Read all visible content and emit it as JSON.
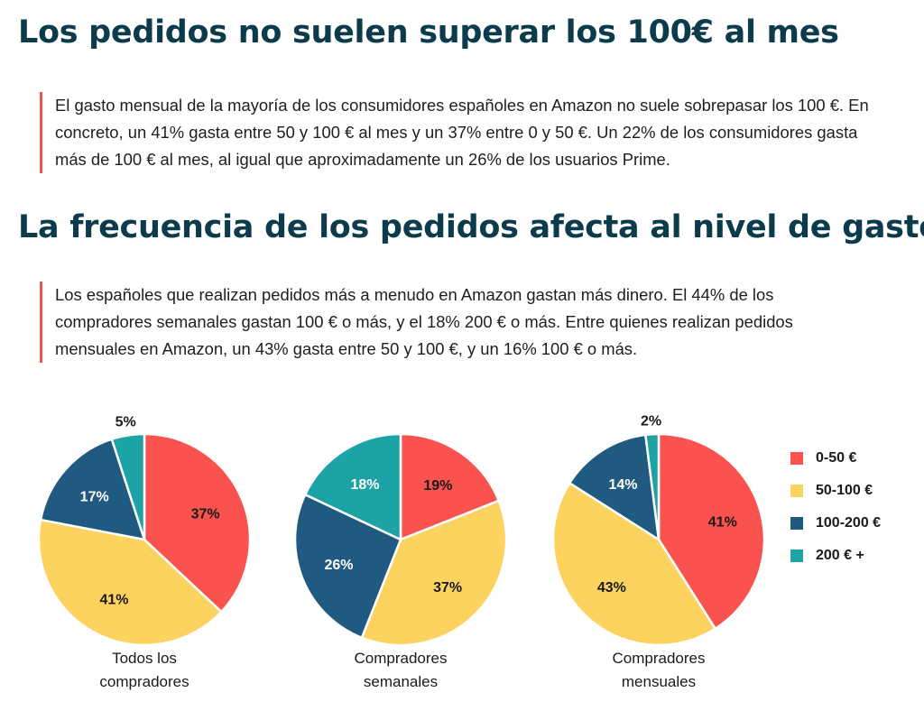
{
  "header1": "Los pedidos no suelen superar los 100€ al mes",
  "paragraph1": "El gasto mensual de la mayoría de los consumidores españoles en Amazon no suele sobrepasar los 100 €. En concreto, un 41% gasta entre 50 y 100 € al mes y un 37% entre 0 y 50 €. Un 22% de los consumidores gasta más de 100 € al mes, al igual que aproximadamente un 26% de los usuarios Prime.",
  "header2": "La frecuencia de los pedidos afecta al nivel de gasto",
  "paragraph2": "Los españoles que realizan pedidos más a menudo en Amazon gastan más dinero. El 44% de los compradores semanales gastan 100 € o más, y el 18% 200 € o más. Entre quienes realizan pedidos mensuales en Amazon, un 43% gasta entre 50 y 100 €, y un 16% 100 € o más.",
  "colors": {
    "0-50": "#f9524f",
    "50-100": "#fdd35f",
    "100-200": "#215a80",
    "200+": "#1da3a5",
    "accent": "#f0504a",
    "heading": "#0c3b4c"
  },
  "legend": [
    {
      "label": "0-50 €",
      "color": "#f9524f"
    },
    {
      "label": "50-100 €",
      "color": "#fdd35f"
    },
    {
      "label": "100-200 €",
      "color": "#215a80"
    },
    {
      "label": "200 € +",
      "color": "#1da3a5"
    }
  ],
  "chart_data": [
    {
      "type": "pie",
      "title_lines": [
        "Todos los",
        "compradores"
      ],
      "categories": [
        "0-50 €",
        "50-100 €",
        "100-200 €",
        "200 € +"
      ],
      "values": [
        37,
        41,
        17,
        5
      ],
      "labels": [
        "37%",
        "41%",
        "17%",
        "5%"
      ]
    },
    {
      "type": "pie",
      "title_lines": [
        "Compradores",
        "semanales"
      ],
      "categories": [
        "0-50 €",
        "50-100 €",
        "100-200 €",
        "200 € +"
      ],
      "values": [
        19,
        37,
        26,
        18
      ],
      "labels": [
        "19%",
        "37%",
        "26%",
        "18%"
      ]
    },
    {
      "type": "pie",
      "title_lines": [
        "Compradores",
        "mensuales"
      ],
      "categories": [
        "0-50 €",
        "50-100 €",
        "100-200 €",
        "200 € +"
      ],
      "values": [
        41,
        43,
        14,
        2
      ],
      "labels": [
        "41%",
        "43%",
        "14%",
        "2%"
      ]
    }
  ]
}
